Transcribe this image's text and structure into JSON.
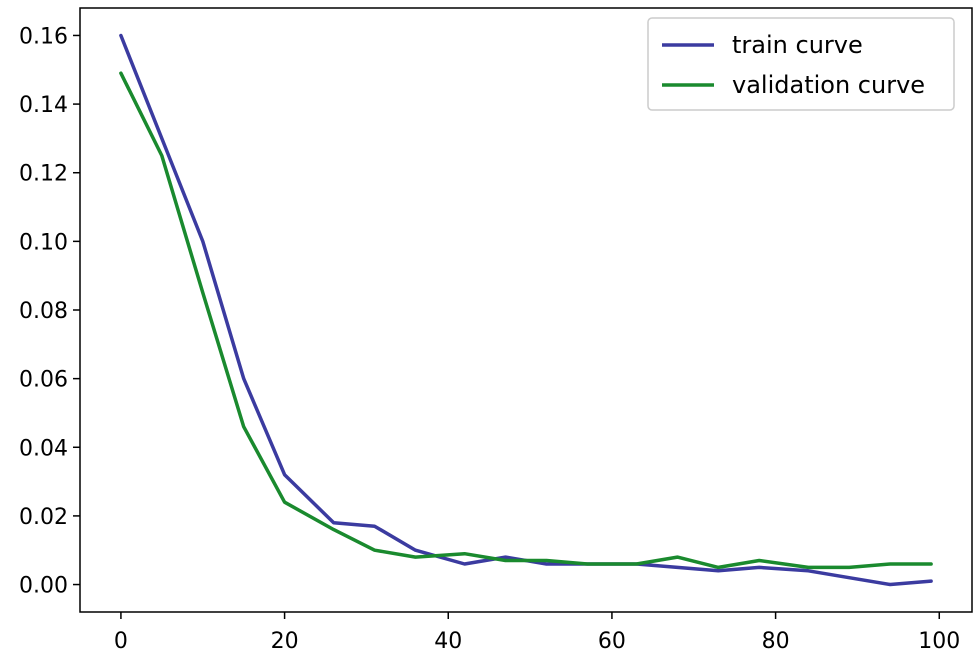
{
  "chart_data": {
    "type": "line",
    "title": "",
    "xlabel": "",
    "ylabel": "",
    "xlim": [
      -5,
      104
    ],
    "ylim": [
      -0.008,
      0.168
    ],
    "xticks": [
      0,
      20,
      40,
      60,
      80,
      100
    ],
    "xtick_labels": [
      "0",
      "20",
      "40",
      "60",
      "80",
      "100"
    ],
    "yticks": [
      0.0,
      0.02,
      0.04,
      0.06,
      0.08,
      0.1,
      0.12,
      0.14,
      0.16
    ],
    "ytick_labels": [
      "0.00",
      "0.02",
      "0.04",
      "0.06",
      "0.08",
      "0.10",
      "0.12",
      "0.14",
      "0.16"
    ],
    "grid": false,
    "legend_position": "top-right",
    "series": [
      {
        "name": "train curve",
        "color": "#3b3ba0",
        "x": [
          0,
          5,
          10,
          15,
          20,
          26,
          31,
          36,
          42,
          47,
          52,
          57,
          63,
          68,
          73,
          78,
          84,
          89,
          94,
          99
        ],
        "y": [
          0.16,
          0.13,
          0.1,
          0.06,
          0.032,
          0.018,
          0.017,
          0.01,
          0.006,
          0.008,
          0.006,
          0.006,
          0.006,
          0.005,
          0.004,
          0.005,
          0.004,
          0.002,
          0.0,
          0.001
        ]
      },
      {
        "name": "validation curve",
        "color": "#1a8a2e",
        "x": [
          0,
          5,
          10,
          15,
          20,
          26,
          31,
          36,
          42,
          47,
          52,
          57,
          63,
          68,
          73,
          78,
          84,
          89,
          94,
          99
        ],
        "y": [
          0.149,
          0.125,
          0.085,
          0.046,
          0.024,
          0.016,
          0.01,
          0.008,
          0.009,
          0.007,
          0.007,
          0.006,
          0.006,
          0.008,
          0.005,
          0.007,
          0.005,
          0.005,
          0.006,
          0.006
        ]
      }
    ]
  }
}
